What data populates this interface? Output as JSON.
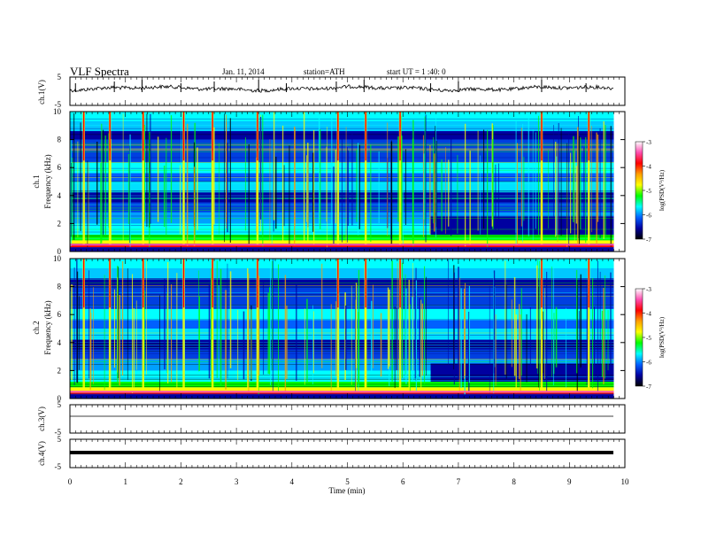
{
  "header": {
    "title": "VLF  Spectra",
    "date": "Jan. 11, 2014",
    "station": "station=ATH",
    "start": "start  UT  =   1 :40: 0"
  },
  "colorbar": {
    "label": "log(PSD(V²/Hz)",
    "ticks": [
      -3,
      -4,
      -5,
      -6,
      -7
    ],
    "colors": [
      "#ffffff",
      "#ff4fb0",
      "#ff0000",
      "#ffa000",
      "#ffff00",
      "#00ff00",
      "#00ffff",
      "#0060ff",
      "#0000a0",
      "#000000"
    ]
  },
  "chart_data": [
    {
      "type": "line",
      "panel": "ch1-waveform",
      "ylabel": "ch.1(V)",
      "ylim": [
        -5,
        5
      ],
      "yticks": [
        5,
        -5
      ],
      "baseline": 0,
      "spike_minutes": [
        0.1,
        0.8,
        1.3,
        2.0,
        2.6,
        3.4,
        3.9,
        4.8,
        5.3,
        6.5,
        7.0,
        8.5,
        9.3
      ]
    },
    {
      "type": "heatmap",
      "panel": "ch1-spectrogram",
      "ylabel": "ch.1\nFrequency (kHz)",
      "ylim": [
        0,
        10
      ],
      "yticks": [
        0,
        2,
        4,
        6,
        8,
        10
      ],
      "xlim": [
        0,
        10
      ],
      "data_end_minute": 9.8,
      "zlim": [
        -7,
        -3
      ],
      "zlabel": "log(PSD(V²/Hz)",
      "strong_bursts_minutes": [
        0.25,
        0.72,
        1.32,
        2.05,
        2.57,
        3.38,
        4.83,
        5.33,
        5.95,
        8.5,
        9.35
      ],
      "band_step_minute": 6.5
    },
    {
      "type": "heatmap",
      "panel": "ch2-spectrogram",
      "ylabel": "ch.2\nFrequency (kHz)",
      "ylim": [
        0,
        10
      ],
      "yticks": [
        0,
        2,
        4,
        6,
        8,
        10
      ],
      "xlim": [
        0,
        10
      ],
      "data_end_minute": 9.8,
      "zlim": [
        -7,
        -3
      ],
      "zlabel": "log(PSD(V²/Hz)",
      "strong_bursts_minutes": [
        0.25,
        0.72,
        1.32,
        2.05,
        2.57,
        3.38,
        4.83,
        5.33,
        5.95,
        8.5,
        9.35
      ],
      "band_step_minute": 6.5
    },
    {
      "type": "line",
      "panel": "ch3-waveform",
      "ylabel": "ch.3(V)",
      "ylim": [
        -5,
        5
      ],
      "yticks": [
        5,
        -5
      ],
      "baseline": 0
    },
    {
      "type": "line",
      "panel": "ch4-waveform",
      "ylabel": "ch.4(V)",
      "ylim": [
        -5,
        5
      ],
      "yticks": [
        5,
        -5
      ],
      "baseline": 0
    }
  ],
  "xaxis": {
    "label": "Time  (min)",
    "ticks": [
      0,
      1,
      2,
      3,
      4,
      5,
      6,
      7,
      8,
      9,
      10
    ],
    "xlim": [
      0,
      10
    ]
  }
}
